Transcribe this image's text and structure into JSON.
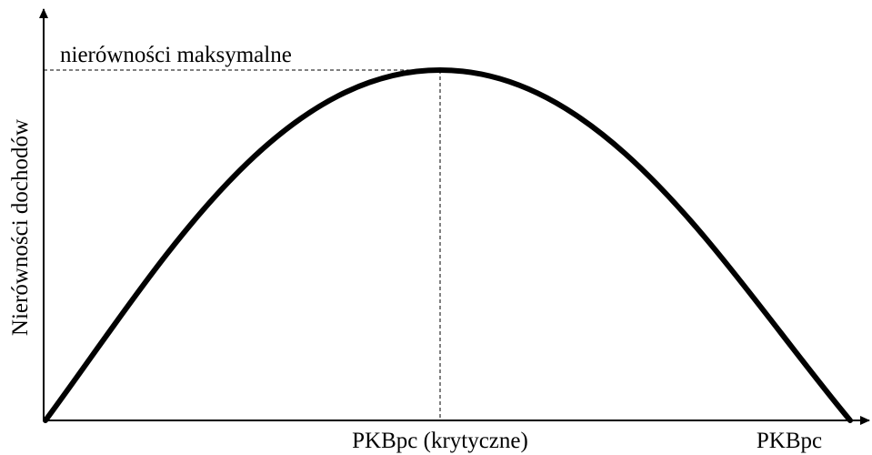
{
  "y_axis_label": "Nierówności dochodów",
  "x_axis_label": "PKBpc",
  "peak_label": "nierówności maksymalne",
  "critical_label": "PKBpc (krytyczne)"
}
